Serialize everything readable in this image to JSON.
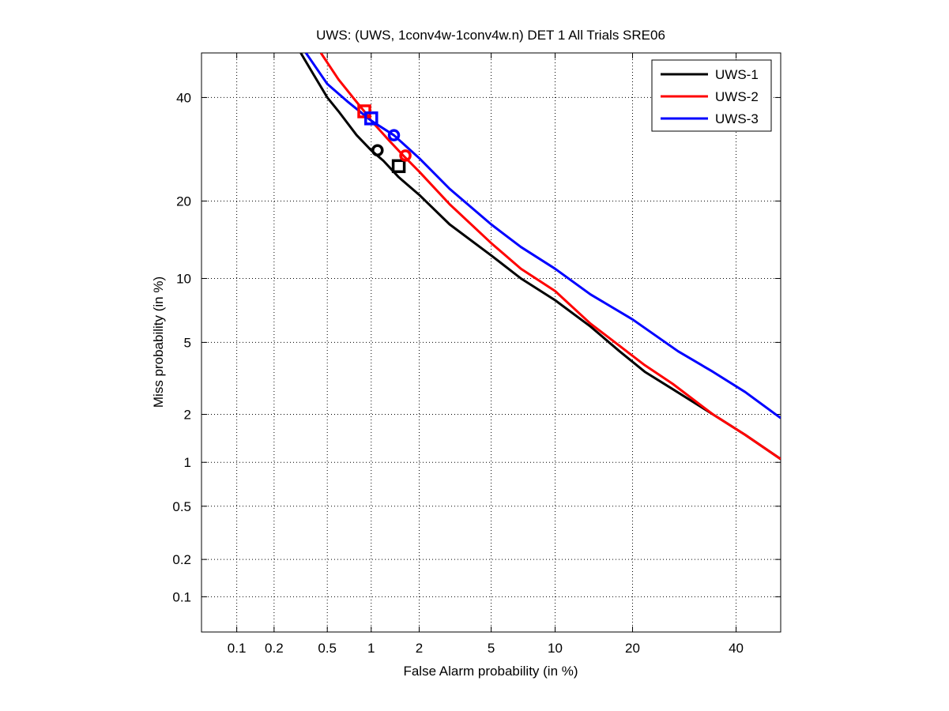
{
  "chart_data": {
    "type": "line",
    "title": "UWS: (UWS, 1conv4w-1conv4w.n) DET 1 All Trials SRE06",
    "xlabel": "False Alarm probability (in %)",
    "ylabel": "Miss probability (in %)",
    "x_scale": "normal-deviate (probit)",
    "y_scale": "normal-deviate (probit)",
    "xlim": [
      0.05,
      50
    ],
    "ylim": [
      0.05,
      50
    ],
    "x_ticks": [
      0.1,
      0.2,
      0.5,
      1,
      2,
      5,
      10,
      20,
      40
    ],
    "x_tick_labels": [
      "0.1",
      "0.2",
      "0.5",
      "1",
      "2",
      "5",
      "10",
      "20",
      "40"
    ],
    "y_ticks": [
      0.1,
      0.2,
      0.5,
      1,
      2,
      5,
      10,
      20,
      40
    ],
    "y_tick_labels": [
      "0.1",
      "0.2",
      "0.5",
      "1",
      "2",
      "5",
      "10",
      "20",
      "40"
    ],
    "grid": true,
    "legend_position": "top-right",
    "series": [
      {
        "name": "UWS-1",
        "color": "#000000",
        "x": [
          0.32,
          0.4,
          0.5,
          0.6,
          0.8,
          1.0,
          1.2,
          1.5,
          2.0,
          3.0,
          5.0,
          7.0,
          10.0,
          14.0,
          18.0,
          22.0,
          27.0,
          35.0,
          42.0,
          50.0
        ],
        "y": [
          50.0,
          45.0,
          40.0,
          37.0,
          32.0,
          29.0,
          27.0,
          24.0,
          21.0,
          16.5,
          12.5,
          10.0,
          8.0,
          6.0,
          4.5,
          3.5,
          2.8,
          2.0,
          1.5,
          1.05
        ],
        "circle_marker": {
          "x": 1.1,
          "y": 29.0
        },
        "square_marker": {
          "x": 1.5,
          "y": 26.0
        }
      },
      {
        "name": "UWS-2",
        "color": "#ff0000",
        "x": [
          0.45,
          0.6,
          0.8,
          0.9,
          1.0,
          1.3,
          1.6,
          2.0,
          3.0,
          5.0,
          7.0,
          10.0,
          14.0,
          18.0,
          22.0,
          27.0,
          35.0,
          42.0,
          50.0
        ],
        "y": [
          50.0,
          44.0,
          39.0,
          37.0,
          35.0,
          31.0,
          28.0,
          25.0,
          19.5,
          14.0,
          11.0,
          8.8,
          6.2,
          4.8,
          3.8,
          3.0,
          2.0,
          1.5,
          1.05
        ],
        "circle_marker": {
          "x": 1.65,
          "y": 28.0
        },
        "square_marker": {
          "x": 0.9,
          "y": 37.0
        }
      },
      {
        "name": "UWS-3",
        "color": "#0000ff",
        "x": [
          0.35,
          0.5,
          0.7,
          1.0,
          1.4,
          2.0,
          3.0,
          5.0,
          7.0,
          10.0,
          14.0,
          20.0,
          28.0,
          35.0,
          42.0,
          50.0
        ],
        "y": [
          50.0,
          43.0,
          39.0,
          35.0,
          32.0,
          27.5,
          22.0,
          16.5,
          13.5,
          11.0,
          8.5,
          6.5,
          4.5,
          3.5,
          2.7,
          1.9
        ],
        "circle_marker": {
          "x": 1.4,
          "y": 32.0
        },
        "square_marker": {
          "x": 1.0,
          "y": 35.5
        }
      }
    ]
  }
}
